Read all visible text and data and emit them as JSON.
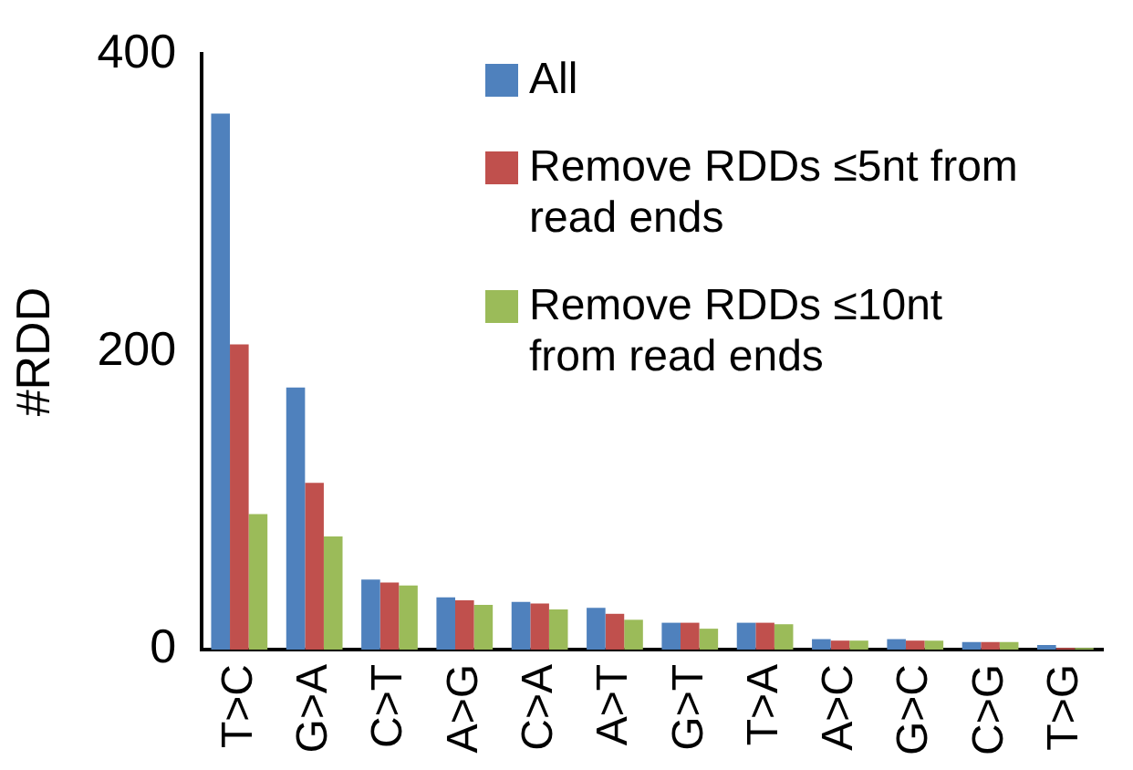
{
  "chart_data": {
    "type": "bar",
    "ylabel": "#RDD",
    "categories": [
      "T>C",
      "G>A",
      "C>T",
      "A>G",
      "C>A",
      "A>T",
      "G>T",
      "T>A",
      "A>C",
      "G>C",
      "C>G",
      "T>G"
    ],
    "series": [
      {
        "name": "All",
        "color": "#4f81bd",
        "values": [
          360,
          176,
          47,
          35,
          32,
          28,
          18,
          18,
          7,
          7,
          5,
          3
        ]
      },
      {
        "name": "Remove RDDs ≤5nt from read ends",
        "color": "#c0504d",
        "values": [
          205,
          112,
          45,
          33,
          31,
          24,
          18,
          18,
          6,
          6,
          5,
          1
        ]
      },
      {
        "name": "Remove RDDs ≤10nt from read ends",
        "color": "#9bbb59",
        "values": [
          91,
          76,
          43,
          30,
          27,
          20,
          14,
          17,
          6,
          6,
          5,
          1
        ]
      }
    ],
    "ylim": [
      0,
      400
    ],
    "yticks": [
      0,
      200,
      400
    ],
    "grid": false,
    "legend": "top right"
  }
}
